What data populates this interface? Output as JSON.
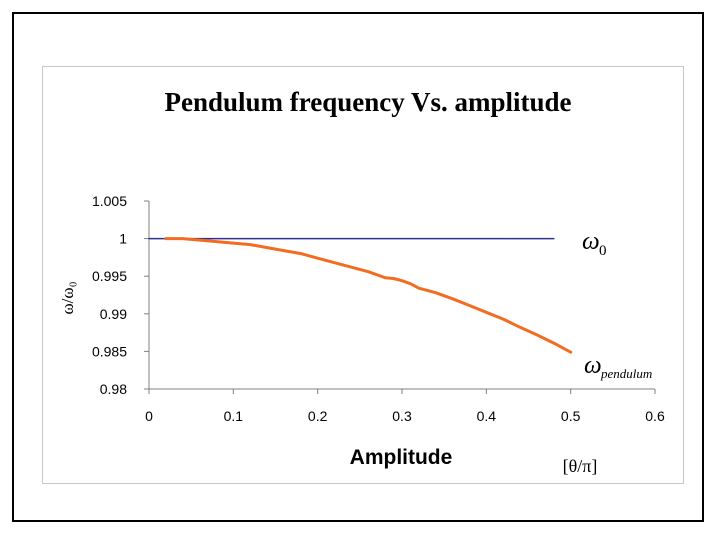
{
  "chart_data": {
    "type": "line",
    "title": "Pendulum frequency Vs. amplitude",
    "xlabel": "Amplitude",
    "xunit": "[θ/π]",
    "ylabel": "ω/ω₀",
    "xlim": [
      0,
      0.6
    ],
    "ylim": [
      0.98,
      1.005
    ],
    "x_ticks": [
      "0",
      "0.1",
      "0.2",
      "0.3",
      "0.4",
      "0.5",
      "0.6"
    ],
    "y_ticks": [
      "1.005",
      "1",
      "0.995",
      "0.99",
      "0.985",
      "0.98"
    ],
    "grid": false,
    "series": [
      {
        "name": "ω0",
        "label_main": "ω",
        "label_sub": "0",
        "color": "#2e3192",
        "x": [
          0,
          0.48
        ],
        "values": [
          1.0,
          1.0
        ]
      },
      {
        "name": "ωpendulum",
        "label_main": "ω",
        "label_sub": "pendulum",
        "color": "#f26c21",
        "x": [
          0.02,
          0.04,
          0.06,
          0.08,
          0.1,
          0.12,
          0.14,
          0.16,
          0.18,
          0.2,
          0.22,
          0.24,
          0.26,
          0.28,
          0.29,
          0.3,
          0.31,
          0.32,
          0.34,
          0.36,
          0.38,
          0.4,
          0.42,
          0.44,
          0.46,
          0.48,
          0.5
        ],
        "values": [
          1.0,
          1.0,
          0.9998,
          0.9996,
          0.9994,
          0.9992,
          0.9988,
          0.9984,
          0.998,
          0.9974,
          0.9968,
          0.9962,
          0.9956,
          0.9948,
          0.9947,
          0.9944,
          0.994,
          0.9934,
          0.9928,
          0.992,
          0.9911,
          0.9902,
          0.9893,
          0.9882,
          0.9872,
          0.9861,
          0.9849
        ]
      }
    ]
  }
}
